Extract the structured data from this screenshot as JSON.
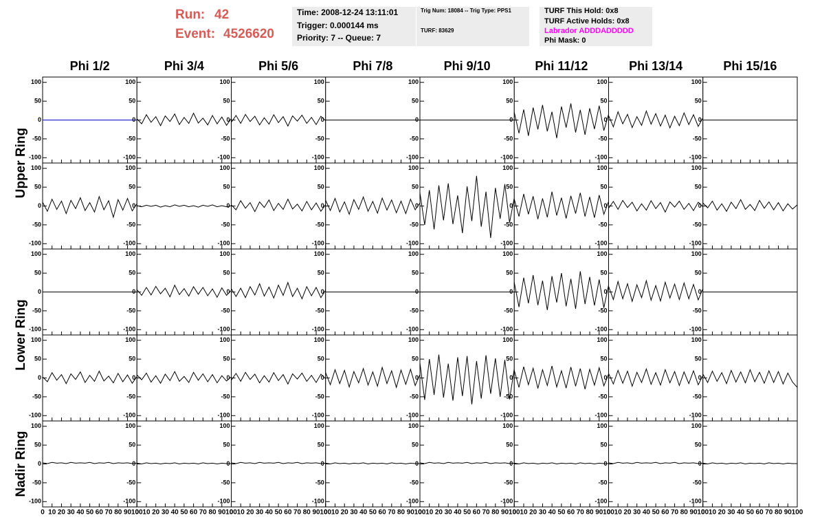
{
  "header": {
    "run_label": "Run:",
    "run": "42",
    "event_label": "Event:",
    "event": "4526620",
    "time": "Time: 2008-12-24 13:11:01",
    "trigger": "Trigger: 0.000144 ms",
    "priority": "Priority: 7 -- Queue: 7",
    "trig_num": "Trig Num: 18084 -- Trig Type: PPS1",
    "turf": "TURF: 83629",
    "turf_hold": "TURF This Hold: 0x8",
    "turf_active": "TURF Active Holds: 0x8",
    "labrador": "Labrador ADDDADDDDD",
    "phi_mask": "Phi Mask: 0"
  },
  "chart_data": {
    "type": "line",
    "columns": [
      "Phi 1/2",
      "Phi 3/4",
      "Phi 5/6",
      "Phi 7/8",
      "Phi 9/10",
      "Phi 11/12",
      "Phi 13/14",
      "Phi 15/16"
    ],
    "rows": [
      "Upper Ring",
      "Lower Ring",
      "Nadir Ring"
    ],
    "x": [
      0,
      5,
      10,
      15,
      20,
      25,
      30,
      35,
      40,
      45,
      50,
      55,
      60,
      65,
      70,
      75,
      80,
      85,
      90,
      95,
      100
    ],
    "xlim": [
      0,
      100
    ],
    "xticks": [
      0,
      10,
      20,
      30,
      40,
      50,
      60,
      70,
      80,
      90,
      100
    ],
    "ylim": [
      -105,
      105
    ],
    "yticks": [
      -100,
      -50,
      0,
      50,
      100
    ],
    "panels": [
      [
        {
          "color": "#0000cc",
          "values": [
            0,
            0,
            0,
            0,
            0,
            0,
            0,
            0,
            0,
            0,
            0,
            0,
            0,
            0,
            0,
            0,
            0,
            0,
            0,
            0,
            0
          ]
        },
        {
          "color": "#000000",
          "values": [
            3,
            -10,
            14,
            -6,
            9,
            -15,
            11,
            -4,
            16,
            -12,
            7,
            -9,
            18,
            -8,
            5,
            -13,
            12,
            -10,
            8,
            -14,
            4
          ]
        },
        {
          "color": "#000000",
          "values": [
            -6,
            12,
            -9,
            15,
            -4,
            10,
            -13,
            6,
            -11,
            14,
            -7,
            9,
            -16,
            11,
            -3,
            13,
            -9,
            7,
            -12,
            10,
            -2
          ]
        },
        {
          "color": "#000000",
          "values": [
            0,
            0,
            0,
            0,
            0,
            0,
            0,
            0,
            0,
            0,
            0,
            0,
            0,
            0,
            0,
            0,
            0,
            0,
            0,
            0,
            0
          ]
        },
        {
          "color": "#000000",
          "values": [
            0,
            0,
            0,
            0,
            0,
            0,
            0,
            0,
            0,
            0,
            0,
            0,
            0,
            0,
            0,
            0,
            0,
            0,
            0,
            0,
            0
          ]
        },
        {
          "color": "#000000",
          "values": [
            20,
            -35,
            28,
            -42,
            33,
            -25,
            40,
            -30,
            22,
            -48,
            36,
            -20,
            44,
            -33,
            27,
            -39,
            31,
            -24,
            38,
            -28,
            15
          ]
        },
        {
          "color": "#000000",
          "values": [
            12,
            -18,
            22,
            -10,
            15,
            -20,
            9,
            -14,
            24,
            -11,
            17,
            -16,
            13,
            -21,
            10,
            -15,
            19,
            -12,
            14,
            -17,
            6
          ]
        },
        {
          "color": "#000000",
          "values": [
            0,
            0,
            0,
            0,
            0,
            0,
            0,
            0,
            0,
            0,
            0,
            0,
            0,
            0,
            0,
            0,
            0,
            0,
            0,
            0,
            0
          ]
        }
      ],
      [
        {
          "color": "#000000",
          "values": [
            10,
            -14,
            18,
            -9,
            13,
            -20,
            15,
            -7,
            22,
            -12,
            9,
            -16,
            25,
            -10,
            14,
            -30,
            17,
            -11,
            20,
            -13,
            6
          ]
        },
        {
          "color": "#000000",
          "values": [
            1,
            -2,
            2,
            -1,
            2,
            -3,
            1,
            -2,
            3,
            -1,
            2,
            -2,
            1,
            -3,
            2,
            -1,
            3,
            -2,
            1,
            -2,
            1
          ]
        },
        {
          "color": "#000000",
          "values": [
            3,
            -10,
            14,
            -6,
            9,
            -15,
            11,
            -4,
            16,
            -12,
            7,
            -9,
            18,
            -8,
            5,
            -13,
            12,
            -10,
            8,
            -14,
            4
          ]
        },
        {
          "color": "#000000",
          "values": [
            15,
            -12,
            20,
            -16,
            11,
            -22,
            17,
            -9,
            24,
            -14,
            12,
            -19,
            21,
            -11,
            16,
            -18,
            13,
            -20,
            18,
            -10,
            8
          ]
        },
        {
          "color": "#000000",
          "values": [
            35,
            -50,
            42,
            -62,
            55,
            -38,
            60,
            -48,
            28,
            -72,
            52,
            -40,
            80,
            -55,
            38,
            -85,
            48,
            -34,
            58,
            -44,
            22
          ]
        },
        {
          "color": "#000000",
          "values": [
            18,
            -28,
            32,
            -22,
            26,
            -35,
            20,
            -30,
            38,
            -25,
            22,
            -33,
            27,
            -20,
            35,
            -28,
            24,
            -31,
            29,
            -22,
            12
          ]
        },
        {
          "color": "#000000",
          "values": [
            -6,
            12,
            -9,
            15,
            -4,
            10,
            -13,
            6,
            -11,
            14,
            -7,
            9,
            -16,
            11,
            -3,
            13,
            -9,
            7,
            -12,
            10,
            -2
          ]
        },
        {
          "color": "#000000",
          "values": [
            8,
            -5,
            13,
            -11,
            6,
            -14,
            10,
            -7,
            17,
            -9,
            4,
            -12,
            15,
            -6,
            11,
            -10,
            9,
            -13,
            6,
            -8,
            3
          ]
        }
      ],
      [
        {
          "color": "#000000",
          "values": [
            0,
            0,
            0,
            0,
            0,
            0,
            0,
            0,
            0,
            0,
            0,
            0,
            0,
            0,
            0,
            0,
            0,
            0,
            0,
            0,
            0
          ]
        },
        {
          "color": "#000000",
          "values": [
            6,
            -9,
            12,
            -8,
            15,
            -5,
            10,
            -13,
            18,
            -7,
            9,
            -11,
            14,
            -6,
            12,
            -10,
            8,
            -14,
            11,
            -9,
            4
          ]
        },
        {
          "color": "#000000",
          "values": [
            9,
            -12,
            10,
            -15,
            14,
            -8,
            22,
            -11,
            13,
            -16,
            18,
            -9,
            25,
            -12,
            10,
            -18,
            14,
            -10,
            12,
            -15,
            5
          ]
        },
        {
          "color": "#000000",
          "values": [
            0,
            0,
            0,
            0,
            0,
            0,
            0,
            0,
            0,
            0,
            0,
            0,
            0,
            0,
            0,
            0,
            0,
            0,
            0,
            0,
            0
          ]
        },
        {
          "color": "#000000",
          "values": [
            0,
            0,
            0,
            0,
            0,
            0,
            0,
            0,
            0,
            0,
            0,
            0,
            0,
            0,
            0,
            0,
            0,
            0,
            0,
            0,
            0
          ]
        },
        {
          "color": "#000000",
          "values": [
            25,
            -40,
            38,
            -30,
            45,
            -35,
            30,
            -48,
            42,
            -28,
            50,
            -38,
            35,
            -45,
            55,
            -32,
            40,
            -36,
            33,
            -42,
            18
          ]
        },
        {
          "color": "#000000",
          "values": [
            15,
            -20,
            28,
            -18,
            22,
            -25,
            19,
            -15,
            30,
            -22,
            17,
            -24,
            26,
            -16,
            21,
            -20,
            24,
            -18,
            20,
            -21,
            9
          ]
        },
        {
          "color": "#000000",
          "values": [
            0,
            0,
            0,
            0,
            0,
            0,
            0,
            0,
            0,
            0,
            0,
            0,
            0,
            0,
            0,
            0,
            0,
            0,
            0,
            0,
            0
          ]
        }
      ],
      [
        {
          "color": "#000000",
          "values": [
            3,
            -10,
            14,
            -6,
            9,
            -15,
            11,
            -4,
            16,
            -12,
            7,
            -9,
            18,
            -8,
            5,
            -13,
            12,
            -10,
            8,
            -14,
            4
          ]
        },
        {
          "color": "#000000",
          "values": [
            8,
            -5,
            13,
            -11,
            6,
            -14,
            10,
            -7,
            17,
            -9,
            4,
            -12,
            15,
            -6,
            11,
            -10,
            9,
            -13,
            6,
            -8,
            3
          ]
        },
        {
          "color": "#000000",
          "values": [
            -6,
            12,
            -9,
            15,
            -4,
            10,
            -13,
            6,
            -11,
            14,
            -7,
            9,
            -16,
            11,
            -3,
            13,
            -9,
            7,
            -12,
            10,
            -2
          ]
        },
        {
          "color": "#000000",
          "values": [
            14,
            -18,
            22,
            -15,
            20,
            -24,
            17,
            -13,
            25,
            -19,
            16,
            -22,
            28,
            -15,
            19,
            -25,
            21,
            -17,
            23,
            -20,
            9
          ]
        },
        {
          "color": "#000000",
          "values": [
            40,
            -58,
            50,
            -45,
            62,
            -52,
            38,
            -60,
            55,
            -48,
            58,
            -70,
            45,
            -55,
            60,
            -42,
            52,
            -50,
            48,
            -57,
            25
          ]
        },
        {
          "color": "#000000",
          "values": [
            20,
            -25,
            30,
            -18,
            26,
            -28,
            22,
            -20,
            32,
            -24,
            19,
            -27,
            29,
            -22,
            25,
            -30,
            23,
            -19,
            27,
            -21,
            10
          ]
        },
        {
          "color": "#000000",
          "values": [
            12,
            -16,
            20,
            -14,
            18,
            -22,
            15,
            -12,
            24,
            -17,
            14,
            -19,
            22,
            -13,
            17,
            -20,
            16,
            -15,
            19,
            -18,
            7
          ]
        },
        {
          "color": "#000000",
          "values": [
            10,
            -12,
            18,
            -9,
            14,
            -15,
            20,
            -11,
            16,
            -13,
            22,
            -10,
            15,
            -14,
            19,
            -12,
            17,
            -16,
            13,
            -11,
            -25
          ]
        }
      ],
      [
        {
          "color": "#000000",
          "values": [
            3,
            1,
            4,
            2,
            3,
            1,
            4,
            2,
            3,
            2,
            4,
            1,
            3,
            2,
            4,
            1,
            3,
            2,
            3,
            1,
            2
          ]
        },
        {
          "color": "#000000",
          "values": [
            2,
            0,
            3,
            1,
            2,
            0,
            2,
            1,
            3,
            0,
            2,
            1,
            2,
            0,
            3,
            1,
            2,
            0,
            2,
            1,
            1
          ]
        },
        {
          "color": "#000000",
          "values": [
            3,
            1,
            4,
            2,
            3,
            1,
            4,
            2,
            3,
            2,
            4,
            1,
            3,
            2,
            4,
            1,
            3,
            2,
            3,
            1,
            2
          ]
        },
        {
          "color": "#000000",
          "values": [
            2,
            0,
            3,
            1,
            2,
            0,
            2,
            1,
            3,
            0,
            2,
            1,
            2,
            0,
            3,
            1,
            2,
            0,
            2,
            1,
            1
          ]
        },
        {
          "color": "#000000",
          "values": [
            3,
            1,
            4,
            2,
            3,
            1,
            4,
            2,
            3,
            2,
            4,
            1,
            3,
            2,
            4,
            1,
            3,
            2,
            3,
            1,
            2
          ]
        },
        {
          "color": "#000000",
          "values": [
            2,
            0,
            3,
            1,
            2,
            0,
            2,
            1,
            3,
            0,
            2,
            1,
            2,
            0,
            3,
            1,
            2,
            0,
            2,
            1,
            1
          ]
        },
        {
          "color": "#000000",
          "values": [
            3,
            1,
            4,
            2,
            3,
            1,
            4,
            2,
            3,
            2,
            4,
            1,
            3,
            2,
            4,
            1,
            3,
            2,
            3,
            1,
            2
          ]
        },
        {
          "color": "#000000",
          "values": [
            2,
            0,
            3,
            1,
            2,
            0,
            2,
            1,
            3,
            0,
            2,
            1,
            2,
            0,
            3,
            1,
            2,
            0,
            2,
            1,
            1
          ]
        }
      ]
    ]
  }
}
